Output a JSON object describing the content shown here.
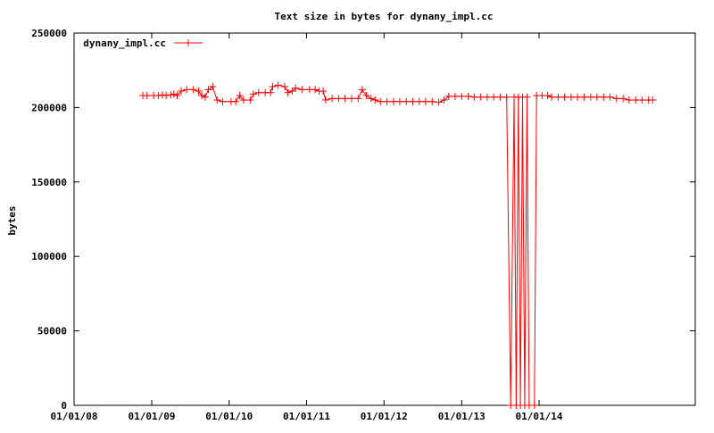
{
  "chart_data": {
    "type": "line",
    "title": "Text size in bytes for dynany_impl.cc",
    "xlabel": "",
    "ylabel": "bytes",
    "x_axis_type": "date",
    "xlim": [
      "2008-01-01",
      "2015-12-31"
    ],
    "ylim": [
      0,
      250000
    ],
    "x_ticks": [
      "2008-01-01",
      "2009-01-01",
      "2010-01-01",
      "2011-01-01",
      "2012-01-01",
      "2013-01-01",
      "2014-01-01"
    ],
    "x_tick_labels": [
      "01/01/08",
      "01/01/09",
      "01/01/10",
      "01/01/11",
      "01/01/12",
      "01/01/13",
      "01/01/14"
    ],
    "y_ticks": [
      0,
      50000,
      100000,
      150000,
      200000,
      250000
    ],
    "y_tick_labels": [
      "0",
      "50000",
      "100000",
      "150000",
      "200000",
      "250000"
    ],
    "grid": false,
    "legend_position": "top-left",
    "color": "#ff0000",
    "marker": "plus",
    "series": [
      {
        "name": "dynany_impl.cc",
        "points": [
          [
            "2008-11-20",
            208000
          ],
          [
            "2008-12-10",
            208000
          ],
          [
            "2009-01-10",
            208000
          ],
          [
            "2009-02-01",
            208000
          ],
          [
            "2009-02-20",
            208500
          ],
          [
            "2009-03-10",
            208000
          ],
          [
            "2009-04-01",
            208500
          ],
          [
            "2009-04-15",
            209000
          ],
          [
            "2009-05-01",
            208000
          ],
          [
            "2009-05-20",
            211000
          ],
          [
            "2009-06-15",
            212000
          ],
          [
            "2009-07-15",
            212000
          ],
          [
            "2009-08-10",
            211000
          ],
          [
            "2009-08-25",
            208000
          ],
          [
            "2009-09-10",
            207000
          ],
          [
            "2009-09-25",
            212000
          ],
          [
            "2009-10-15",
            214000
          ],
          [
            "2009-11-05",
            205000
          ],
          [
            "2009-12-01",
            204000
          ],
          [
            "2010-01-10",
            204000
          ],
          [
            "2010-02-01",
            204000
          ],
          [
            "2010-02-20",
            208000
          ],
          [
            "2010-03-10",
            205000
          ],
          [
            "2010-04-10",
            205000
          ],
          [
            "2010-04-25",
            209000
          ],
          [
            "2010-05-20",
            210000
          ],
          [
            "2010-06-20",
            210000
          ],
          [
            "2010-07-15",
            210000
          ],
          [
            "2010-07-25",
            214000
          ],
          [
            "2010-08-20",
            215000
          ],
          [
            "2010-09-20",
            214000
          ],
          [
            "2010-10-05",
            210000
          ],
          [
            "2010-10-25",
            211000
          ],
          [
            "2010-11-10",
            213000
          ],
          [
            "2010-12-10",
            212000
          ],
          [
            "2011-01-15",
            212000
          ],
          [
            "2011-02-10",
            212000
          ],
          [
            "2011-03-01",
            211000
          ],
          [
            "2011-03-20",
            211000
          ],
          [
            "2011-04-01",
            205000
          ],
          [
            "2011-05-01",
            206000
          ],
          [
            "2011-06-01",
            206000
          ],
          [
            "2011-07-01",
            206000
          ],
          [
            "2011-08-01",
            206000
          ],
          [
            "2011-09-01",
            206000
          ],
          [
            "2011-09-20",
            212000
          ],
          [
            "2011-10-10",
            208000
          ],
          [
            "2011-11-01",
            206000
          ],
          [
            "2011-11-20",
            205000
          ],
          [
            "2011-12-15",
            204000
          ],
          [
            "2012-01-15",
            204000
          ],
          [
            "2012-02-15",
            204000
          ],
          [
            "2012-03-15",
            204000
          ],
          [
            "2012-04-15",
            204000
          ],
          [
            "2012-05-15",
            204000
          ],
          [
            "2012-06-15",
            204000
          ],
          [
            "2012-07-15",
            204000
          ],
          [
            "2012-08-15",
            204000
          ],
          [
            "2012-09-15",
            203500
          ],
          [
            "2012-10-10",
            205000
          ],
          [
            "2012-11-01",
            207500
          ],
          [
            "2012-12-01",
            207500
          ],
          [
            "2013-01-01",
            207500
          ],
          [
            "2013-02-01",
            207500
          ],
          [
            "2013-03-01",
            207000
          ],
          [
            "2013-04-01",
            207000
          ],
          [
            "2013-05-01",
            207000
          ],
          [
            "2013-06-01",
            207000
          ],
          [
            "2013-07-01",
            207000
          ],
          [
            "2013-08-01",
            207000
          ],
          [
            "2013-08-20",
            0
          ],
          [
            "2013-09-05",
            207000
          ],
          [
            "2013-09-15",
            0
          ],
          [
            "2013-09-25",
            207000
          ],
          [
            "2013-10-05",
            0
          ],
          [
            "2013-10-15",
            207000
          ],
          [
            "2013-10-25",
            0
          ],
          [
            "2013-11-05",
            207000
          ],
          [
            "2013-11-15",
            0
          ],
          [
            "2013-12-10",
            0
          ],
          [
            "2013-12-20",
            208000
          ],
          [
            "2014-01-15",
            208000
          ],
          [
            "2014-02-10",
            208000
          ],
          [
            "2014-03-01",
            207000
          ],
          [
            "2014-04-01",
            207000
          ],
          [
            "2014-05-01",
            207000
          ],
          [
            "2014-06-01",
            207000
          ],
          [
            "2014-07-01",
            207000
          ],
          [
            "2014-08-01",
            207000
          ],
          [
            "2014-09-01",
            207000
          ],
          [
            "2014-10-01",
            207000
          ],
          [
            "2014-11-01",
            207000
          ],
          [
            "2014-12-01",
            207000
          ],
          [
            "2015-01-01",
            206000
          ],
          [
            "2015-02-01",
            206000
          ],
          [
            "2015-03-01",
            205000
          ],
          [
            "2015-04-01",
            205000
          ],
          [
            "2015-05-01",
            205000
          ],
          [
            "2015-06-01",
            205000
          ],
          [
            "2015-06-20",
            205000
          ]
        ]
      }
    ]
  }
}
